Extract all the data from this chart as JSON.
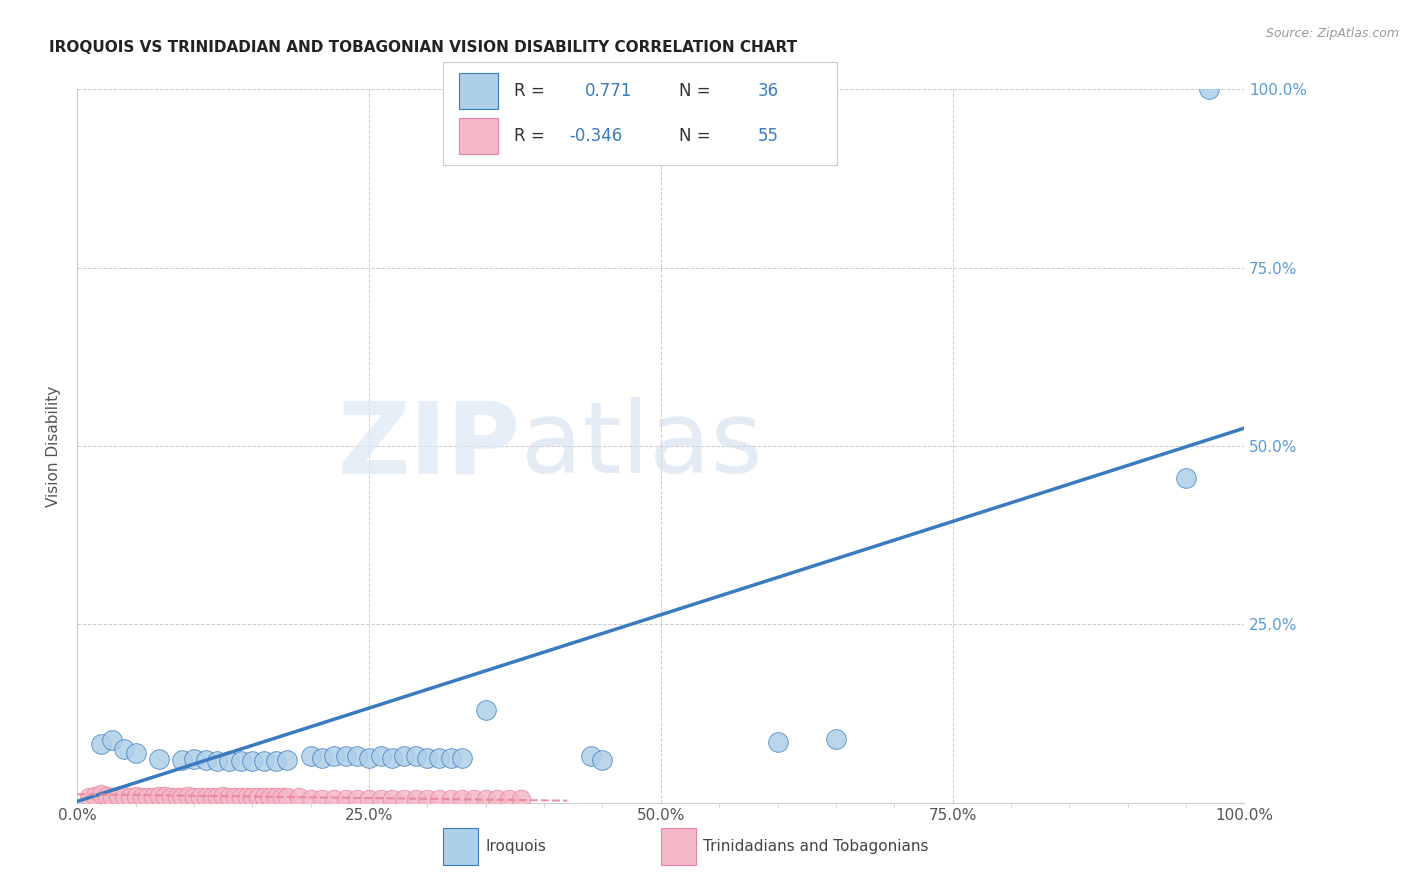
{
  "title": "IROQUOIS VS TRINIDADIAN AND TOBAGONIAN VISION DISABILITY CORRELATION CHART",
  "source": "Source: ZipAtlas.com",
  "ylabel": "Vision Disability",
  "xlim": [
    0,
    1.0
  ],
  "ylim": [
    0,
    1.0
  ],
  "xtick_labels": [
    "0.0%",
    "",
    "",
    "",
    "",
    "25.0%",
    "",
    "",
    "",
    "",
    "50.0%",
    "",
    "",
    "",
    "",
    "75.0%",
    "",
    "",
    "",
    "",
    "100.0%"
  ],
  "xtick_vals": [
    0,
    0.05,
    0.1,
    0.15,
    0.2,
    0.25,
    0.3,
    0.35,
    0.4,
    0.45,
    0.5,
    0.55,
    0.6,
    0.65,
    0.7,
    0.75,
    0.8,
    0.85,
    0.9,
    0.95,
    1.0
  ],
  "ytick_labels": [
    "25.0%",
    "50.0%",
    "75.0%",
    "100.0%"
  ],
  "ytick_vals": [
    0.25,
    0.5,
    0.75,
    1.0
  ],
  "R_blue": 0.771,
  "N_blue": 36,
  "R_pink": -0.346,
  "N_pink": 55,
  "blue_color": "#aecfe8",
  "pink_color": "#f4b8c8",
  "blue_line_color": "#3a7bbf",
  "pink_line_color": "#e8859a",
  "watermark_zip": "ZIP",
  "watermark_atlas": "atlas",
  "blue_scatter": [
    [
      0.97,
      1.0
    ],
    [
      0.95,
      0.455
    ],
    [
      0.35,
      0.13
    ],
    [
      0.44,
      0.065
    ],
    [
      0.45,
      0.06
    ],
    [
      0.6,
      0.085
    ],
    [
      0.65,
      0.09
    ],
    [
      0.02,
      0.082
    ],
    [
      0.03,
      0.088
    ],
    [
      0.04,
      0.075
    ],
    [
      0.05,
      0.07
    ],
    [
      0.07,
      0.062
    ],
    [
      0.09,
      0.06
    ],
    [
      0.1,
      0.062
    ],
    [
      0.11,
      0.06
    ],
    [
      0.12,
      0.058
    ],
    [
      0.13,
      0.058
    ],
    [
      0.14,
      0.058
    ],
    [
      0.15,
      0.058
    ],
    [
      0.16,
      0.058
    ],
    [
      0.17,
      0.058
    ],
    [
      0.18,
      0.06
    ],
    [
      0.2,
      0.065
    ],
    [
      0.21,
      0.063
    ],
    [
      0.22,
      0.065
    ],
    [
      0.23,
      0.065
    ],
    [
      0.24,
      0.065
    ],
    [
      0.25,
      0.063
    ],
    [
      0.26,
      0.065
    ],
    [
      0.27,
      0.063
    ],
    [
      0.28,
      0.065
    ],
    [
      0.29,
      0.065
    ],
    [
      0.3,
      0.063
    ],
    [
      0.31,
      0.063
    ],
    [
      0.32,
      0.063
    ],
    [
      0.33,
      0.063
    ]
  ],
  "pink_scatter": [
    [
      0.01,
      0.008
    ],
    [
      0.015,
      0.01
    ],
    [
      0.02,
      0.012
    ],
    [
      0.025,
      0.01
    ],
    [
      0.03,
      0.008
    ],
    [
      0.035,
      0.01
    ],
    [
      0.04,
      0.01
    ],
    [
      0.045,
      0.008
    ],
    [
      0.05,
      0.01
    ],
    [
      0.055,
      0.008
    ],
    [
      0.06,
      0.008
    ],
    [
      0.065,
      0.008
    ],
    [
      0.07,
      0.01
    ],
    [
      0.075,
      0.01
    ],
    [
      0.08,
      0.008
    ],
    [
      0.085,
      0.008
    ],
    [
      0.09,
      0.008
    ],
    [
      0.095,
      0.01
    ],
    [
      0.1,
      0.008
    ],
    [
      0.105,
      0.008
    ],
    [
      0.11,
      0.008
    ],
    [
      0.115,
      0.008
    ],
    [
      0.12,
      0.008
    ],
    [
      0.125,
      0.01
    ],
    [
      0.13,
      0.008
    ],
    [
      0.135,
      0.008
    ],
    [
      0.14,
      0.008
    ],
    [
      0.145,
      0.008
    ],
    [
      0.15,
      0.008
    ],
    [
      0.155,
      0.008
    ],
    [
      0.16,
      0.008
    ],
    [
      0.165,
      0.008
    ],
    [
      0.17,
      0.008
    ],
    [
      0.175,
      0.008
    ],
    [
      0.18,
      0.008
    ],
    [
      0.19,
      0.008
    ],
    [
      0.2,
      0.006
    ],
    [
      0.21,
      0.006
    ],
    [
      0.22,
      0.006
    ],
    [
      0.23,
      0.006
    ],
    [
      0.24,
      0.006
    ],
    [
      0.25,
      0.006
    ],
    [
      0.26,
      0.006
    ],
    [
      0.27,
      0.006
    ],
    [
      0.28,
      0.006
    ],
    [
      0.29,
      0.006
    ],
    [
      0.3,
      0.006
    ],
    [
      0.31,
      0.006
    ],
    [
      0.32,
      0.006
    ],
    [
      0.33,
      0.006
    ],
    [
      0.34,
      0.006
    ],
    [
      0.35,
      0.006
    ],
    [
      0.36,
      0.006
    ],
    [
      0.37,
      0.006
    ],
    [
      0.38,
      0.006
    ]
  ],
  "blue_regline_x": [
    0.0,
    1.0
  ],
  "blue_regline_y": [
    0.002,
    0.525
  ],
  "pink_regline_x": [
    0.0,
    0.42
  ],
  "pink_regline_y": [
    0.012,
    0.003
  ]
}
